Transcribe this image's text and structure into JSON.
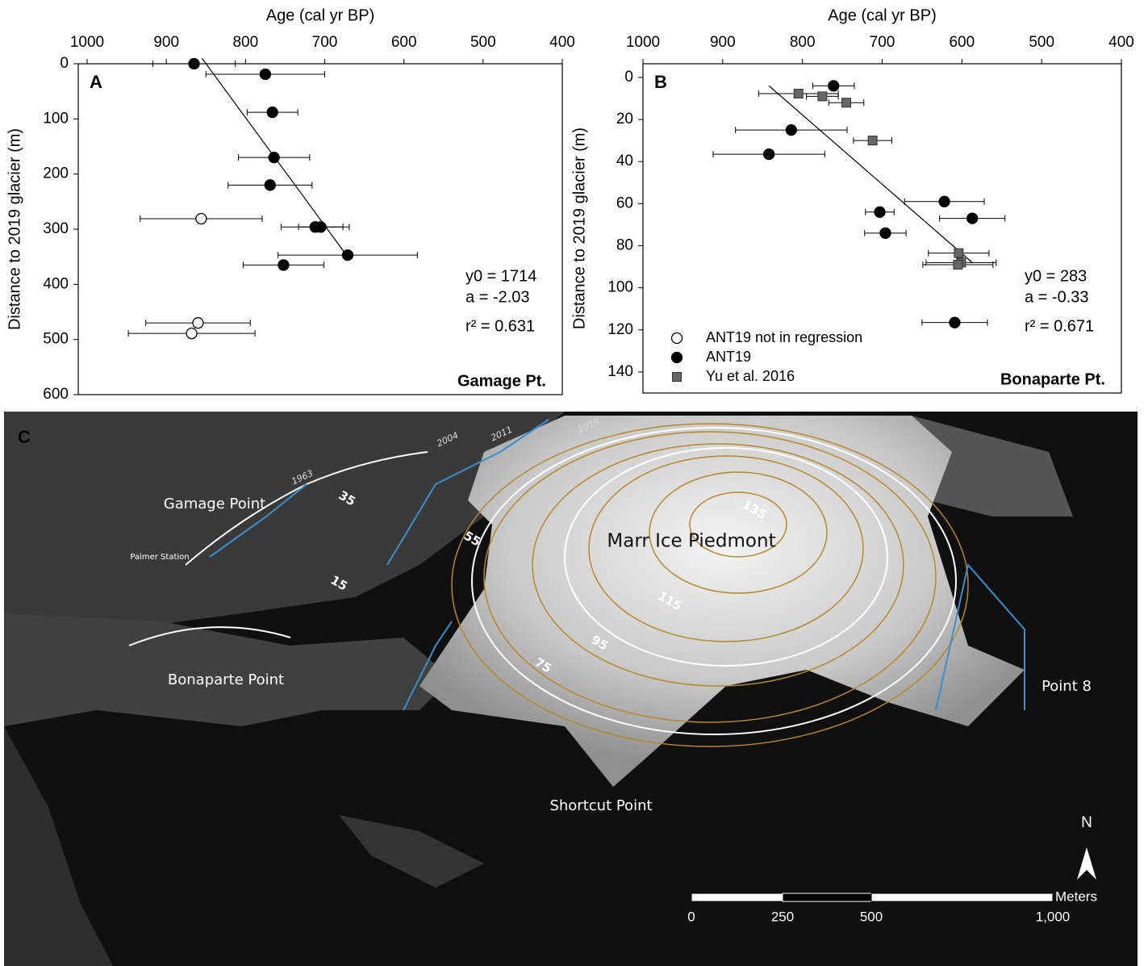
{
  "chart_data": [
    {
      "type": "scatter",
      "panel_label": "A",
      "site_label": "Gamage Pt.",
      "xlabel": "Age (cal yr BP)",
      "ylabel": "Distance to 2019 glacier (m)",
      "xlim": [
        1000,
        400
      ],
      "ylim": [
        0,
        600
      ],
      "y_inverted": true,
      "xticks": [
        1000,
        900,
        800,
        700,
        600,
        500,
        400
      ],
      "yticks": [
        0,
        100,
        200,
        300,
        400,
        500,
        600
      ],
      "series": [
        {
          "name": "ANT19 not in regression",
          "marker": "open-circle",
          "color": "#000000",
          "x": [
            856,
            860,
            868
          ],
          "y": [
            281,
            470,
            489
          ],
          "xerr": [
            77,
            66,
            80
          ]
        },
        {
          "name": "ANT19",
          "marker": "circle",
          "color": "#000000",
          "x": [
            865,
            775,
            766,
            764,
            769,
            712,
            705,
            671,
            752
          ],
          "y": [
            0,
            19,
            88,
            170,
            220,
            296,
            296,
            347,
            365
          ],
          "xerr": [
            52,
            75,
            32,
            45,
            53,
            43,
            28,
            88,
            51
          ]
        }
      ],
      "fit": {
        "x": [
          855,
          668
        ],
        "y": [
          -10,
          356
        ]
      },
      "stats": [
        "y0 = 1714",
        "a = -2.03",
        "r² = 0.631"
      ]
    },
    {
      "type": "scatter",
      "panel_label": "B",
      "site_label": "Bonaparte Pt.",
      "xlabel": "Age (cal yr BP)",
      "ylabel": "Distance to 2019 glacier (m)",
      "xlim": [
        1000,
        400
      ],
      "ylim": [
        -6.5,
        150
      ],
      "y_inverted": true,
      "xticks": [
        1000,
        900,
        800,
        700,
        600,
        500,
        400
      ],
      "yticks": [
        0,
        20,
        40,
        60,
        80,
        100,
        120,
        140
      ],
      "legend": "lower left",
      "series": [
        {
          "name": "ANT19 not in regression",
          "marker": "open-circle",
          "color": "#000000",
          "x": [],
          "y": [],
          "xerr": []
        },
        {
          "name": "ANT19",
          "marker": "circle",
          "color": "#000000",
          "x": [
            761,
            814,
            842,
            622,
            587,
            703,
            696,
            609
          ],
          "y": [
            4,
            25,
            36.5,
            59,
            67,
            64,
            74,
            116.5
          ],
          "xerr": [
            26,
            70,
            70,
            50,
            41,
            18,
            26,
            41
          ]
        },
        {
          "name": "Yu et al. 2016",
          "marker": "square",
          "color": "#666666",
          "x": [
            805,
            775,
            745,
            712,
            604,
            601,
            605
          ],
          "y": [
            7.7,
            9,
            12,
            30,
            83.5,
            88,
            89
          ],
          "xerr": [
            50,
            20,
            22,
            24,
            38,
            44,
            44
          ]
        }
      ],
      "fit": {
        "x": [
          842,
          587
        ],
        "y": [
          4,
          88
        ]
      },
      "stats": [
        "y0 = 283",
        "a = -0.33",
        "r² = 0.671"
      ]
    }
  ],
  "map": {
    "panel_label": "C",
    "place_labels": [
      "Gamage Point",
      "Palmer Station",
      "Bonaparte Point",
      "Marr Ice Piedmont",
      "Point 8",
      "Shortcut Point"
    ],
    "contour_labels": [
      "35",
      "15",
      "55",
      "75",
      "95",
      "115",
      "135"
    ],
    "year_labels": [
      "1963",
      "2004",
      "2011",
      "2019"
    ],
    "scale_labels": [
      "0",
      "250",
      "500",
      "1,000"
    ],
    "scale_unit": "Meters",
    "north": "N"
  }
}
